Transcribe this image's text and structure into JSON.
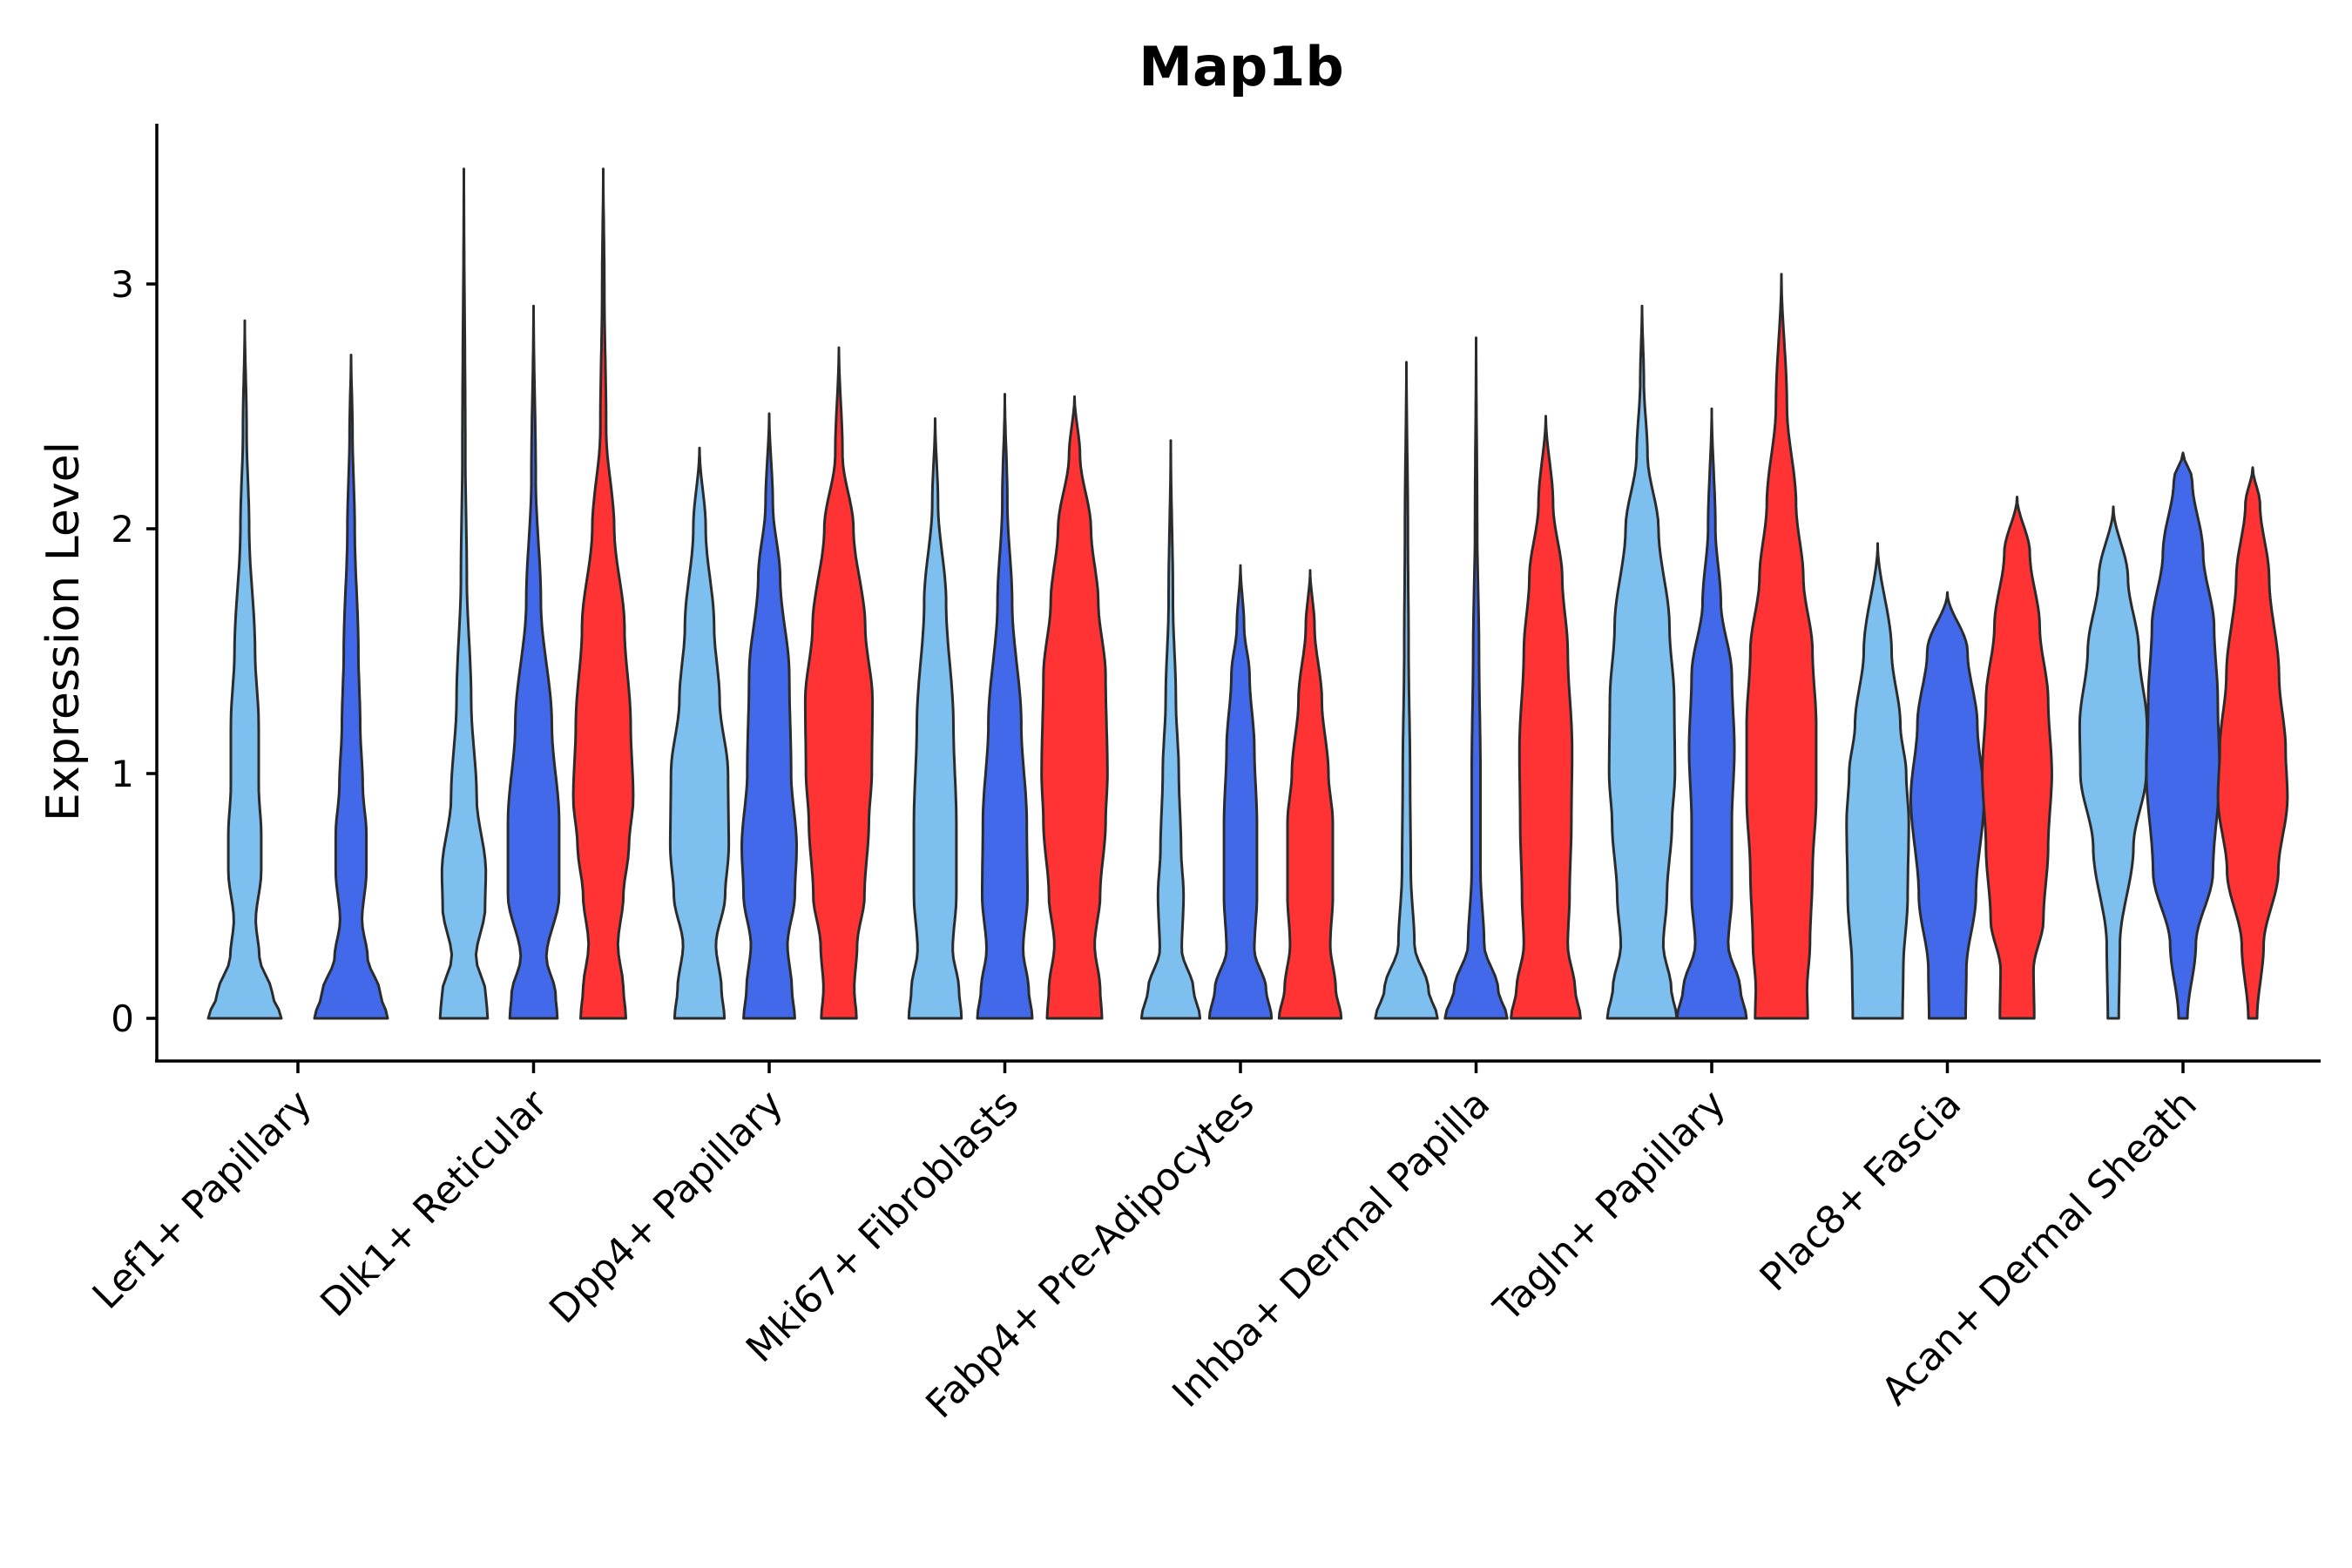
{
  "chart_data": {
    "type": "violin",
    "title": "Map1b",
    "xlabel": "",
    "ylabel": "Expression Level",
    "ylim": [
      -0.17,
      3.65
    ],
    "yticks": [
      0,
      1,
      2,
      3
    ],
    "grid": false,
    "legend": "none",
    "series_colors": [
      "#7dbfee",
      "#4169e9",
      "#ff3333"
    ],
    "categories": [
      "Lef1+ Papillary",
      "Dlk1+ Reticular",
      "Dpp4+ Papillary",
      "Mki67+ Fibroblasts",
      "Fabp4+ Pre-Adipocytes",
      "Inhba+ Dermal Papilla",
      "Tagln+ Papillary",
      "Plac8+ Fascia",
      "Acan+ Dermal Sheath"
    ],
    "violins": [
      {
        "category": 0,
        "series": 0,
        "max": 2.85,
        "min": 0,
        "profile": [
          [
            0,
            1.0
          ],
          [
            0.1,
            0.75
          ],
          [
            0.25,
            0.4
          ],
          [
            0.4,
            0.3
          ],
          [
            0.6,
            0.45
          ],
          [
            0.75,
            0.45
          ],
          [
            0.95,
            0.38
          ],
          [
            1.2,
            0.38
          ],
          [
            1.5,
            0.28
          ],
          [
            2.0,
            0.12
          ],
          [
            2.4,
            0.05
          ],
          [
            2.85,
            0
          ]
        ]
      },
      {
        "category": 0,
        "series": 1,
        "max": 2.71,
        "min": 0,
        "profile": [
          [
            0,
            1.0
          ],
          [
            0.1,
            0.8
          ],
          [
            0.25,
            0.45
          ],
          [
            0.4,
            0.3
          ],
          [
            0.6,
            0.42
          ],
          [
            0.75,
            0.42
          ],
          [
            0.95,
            0.32
          ],
          [
            1.2,
            0.25
          ],
          [
            1.5,
            0.2
          ],
          [
            2.0,
            0.1
          ],
          [
            2.4,
            0.04
          ],
          [
            2.71,
            0
          ]
        ]
      },
      {
        "category": 1,
        "series": 0,
        "max": 3.47,
        "min": 0,
        "profile": [
          [
            0,
            0.65
          ],
          [
            0.1,
            0.6
          ],
          [
            0.25,
            0.33
          ],
          [
            0.45,
            0.58
          ],
          [
            0.6,
            0.6
          ],
          [
            0.9,
            0.35
          ],
          [
            1.3,
            0.2
          ],
          [
            1.8,
            0.08
          ],
          [
            2.3,
            0.04
          ],
          [
            3.47,
            0
          ]
        ]
      },
      {
        "category": 1,
        "series": 1,
        "max": 2.91,
        "min": 0,
        "profile": [
          [
            0,
            0.65
          ],
          [
            0.1,
            0.6
          ],
          [
            0.25,
            0.35
          ],
          [
            0.5,
            0.7
          ],
          [
            0.8,
            0.7
          ],
          [
            1.2,
            0.5
          ],
          [
            1.7,
            0.2
          ],
          [
            2.2,
            0.06
          ],
          [
            2.91,
            0
          ]
        ]
      },
      {
        "category": 1,
        "series": 2,
        "max": 3.47,
        "min": 0,
        "profile": [
          [
            0,
            0.62
          ],
          [
            0.12,
            0.55
          ],
          [
            0.3,
            0.4
          ],
          [
            0.5,
            0.55
          ],
          [
            0.7,
            0.7
          ],
          [
            0.9,
            0.82
          ],
          [
            1.2,
            0.75
          ],
          [
            1.6,
            0.58
          ],
          [
            2.0,
            0.3
          ],
          [
            2.4,
            0.08
          ],
          [
            3.0,
            0.03
          ],
          [
            3.47,
            0
          ]
        ]
      },
      {
        "category": 2,
        "series": 0,
        "max": 2.33,
        "min": 0,
        "profile": [
          [
            0,
            0.68
          ],
          [
            0.12,
            0.6
          ],
          [
            0.3,
            0.45
          ],
          [
            0.5,
            0.7
          ],
          [
            0.7,
            0.8
          ],
          [
            1.0,
            0.78
          ],
          [
            1.3,
            0.55
          ],
          [
            1.6,
            0.4
          ],
          [
            2.0,
            0.17
          ],
          [
            2.33,
            0
          ]
        ]
      },
      {
        "category": 2,
        "series": 1,
        "max": 2.47,
        "min": 0,
        "profile": [
          [
            0,
            0.7
          ],
          [
            0.12,
            0.62
          ],
          [
            0.3,
            0.5
          ],
          [
            0.5,
            0.7
          ],
          [
            0.7,
            0.75
          ],
          [
            1.0,
            0.6
          ],
          [
            1.4,
            0.55
          ],
          [
            1.8,
            0.3
          ],
          [
            2.1,
            0.1
          ],
          [
            2.47,
            0
          ]
        ]
      },
      {
        "category": 2,
        "series": 2,
        "max": 2.74,
        "min": 0,
        "profile": [
          [
            0,
            0.48
          ],
          [
            0.12,
            0.42
          ],
          [
            0.3,
            0.5
          ],
          [
            0.5,
            0.7
          ],
          [
            0.8,
            0.82
          ],
          [
            1.0,
            0.9
          ],
          [
            1.3,
            0.92
          ],
          [
            1.6,
            0.72
          ],
          [
            2.0,
            0.4
          ],
          [
            2.3,
            0.1
          ],
          [
            2.74,
            0
          ]
        ]
      },
      {
        "category": 3,
        "series": 0,
        "max": 2.45,
        "min": 0,
        "profile": [
          [
            0,
            0.72
          ],
          [
            0.12,
            0.65
          ],
          [
            0.28,
            0.48
          ],
          [
            0.5,
            0.58
          ],
          [
            0.8,
            0.58
          ],
          [
            1.2,
            0.5
          ],
          [
            1.7,
            0.3
          ],
          [
            2.1,
            0.08
          ],
          [
            2.45,
            0
          ]
        ]
      },
      {
        "category": 3,
        "series": 1,
        "max": 2.55,
        "min": 0,
        "profile": [
          [
            0,
            0.75
          ],
          [
            0.12,
            0.65
          ],
          [
            0.28,
            0.5
          ],
          [
            0.5,
            0.62
          ],
          [
            0.8,
            0.6
          ],
          [
            1.2,
            0.45
          ],
          [
            1.7,
            0.2
          ],
          [
            2.1,
            0.07
          ],
          [
            2.55,
            0
          ]
        ]
      },
      {
        "category": 3,
        "series": 2,
        "max": 2.54,
        "min": 0,
        "profile": [
          [
            0,
            0.75
          ],
          [
            0.12,
            0.7
          ],
          [
            0.3,
            0.55
          ],
          [
            0.5,
            0.7
          ],
          [
            0.8,
            0.85
          ],
          [
            1.0,
            0.9
          ],
          [
            1.4,
            0.85
          ],
          [
            1.7,
            0.65
          ],
          [
            2.0,
            0.45
          ],
          [
            2.3,
            0.15
          ],
          [
            2.54,
            0
          ]
        ]
      },
      {
        "category": 4,
        "series": 0,
        "max": 2.36,
        "min": 0,
        "profile": [
          [
            0,
            0.8
          ],
          [
            0.12,
            0.62
          ],
          [
            0.28,
            0.3
          ],
          [
            0.5,
            0.35
          ],
          [
            0.7,
            0.28
          ],
          [
            1.0,
            0.22
          ],
          [
            1.3,
            0.14
          ],
          [
            1.7,
            0.06
          ],
          [
            2.36,
            0
          ]
        ]
      },
      {
        "category": 4,
        "series": 1,
        "max": 1.85,
        "min": 0,
        "profile": [
          [
            0,
            0.85
          ],
          [
            0.12,
            0.7
          ],
          [
            0.28,
            0.38
          ],
          [
            0.5,
            0.45
          ],
          [
            0.8,
            0.45
          ],
          [
            1.1,
            0.38
          ],
          [
            1.4,
            0.25
          ],
          [
            1.6,
            0.1
          ],
          [
            1.85,
            0
          ]
        ]
      },
      {
        "category": 4,
        "series": 2,
        "max": 1.83,
        "min": 0,
        "profile": [
          [
            0,
            0.85
          ],
          [
            0.12,
            0.7
          ],
          [
            0.3,
            0.55
          ],
          [
            0.5,
            0.62
          ],
          [
            0.8,
            0.62
          ],
          [
            1.0,
            0.5
          ],
          [
            1.3,
            0.32
          ],
          [
            1.6,
            0.12
          ],
          [
            1.83,
            0
          ]
        ]
      },
      {
        "category": 5,
        "series": 0,
        "max": 2.68,
        "min": 0,
        "profile": [
          [
            0,
            0.85
          ],
          [
            0.12,
            0.6
          ],
          [
            0.3,
            0.22
          ],
          [
            0.6,
            0.12
          ],
          [
            1.0,
            0.1
          ],
          [
            1.5,
            0.06
          ],
          [
            2.0,
            0.04
          ],
          [
            2.68,
            0
          ]
        ]
      },
      {
        "category": 5,
        "series": 1,
        "max": 2.78,
        "min": 0,
        "profile": [
          [
            0,
            0.85
          ],
          [
            0.12,
            0.6
          ],
          [
            0.3,
            0.22
          ],
          [
            0.6,
            0.12
          ],
          [
            1.0,
            0.12
          ],
          [
            1.5,
            0.08
          ],
          [
            2.0,
            0.03
          ],
          [
            2.78,
            0
          ]
        ]
      },
      {
        "category": 5,
        "series": 2,
        "max": 2.46,
        "min": 0,
        "profile": [
          [
            0,
            0.95
          ],
          [
            0.12,
            0.8
          ],
          [
            0.3,
            0.6
          ],
          [
            0.5,
            0.65
          ],
          [
            0.8,
            0.7
          ],
          [
            1.1,
            0.72
          ],
          [
            1.5,
            0.6
          ],
          [
            1.8,
            0.45
          ],
          [
            2.1,
            0.2
          ],
          [
            2.46,
            0
          ]
        ]
      },
      {
        "category": 6,
        "series": 0,
        "max": 2.91,
        "min": 0,
        "profile": [
          [
            0,
            0.95
          ],
          [
            0.12,
            0.8
          ],
          [
            0.3,
            0.58
          ],
          [
            0.5,
            0.68
          ],
          [
            0.8,
            0.82
          ],
          [
            1.0,
            0.9
          ],
          [
            1.3,
            0.88
          ],
          [
            1.6,
            0.75
          ],
          [
            2.0,
            0.45
          ],
          [
            2.3,
            0.15
          ],
          [
            2.6,
            0.05
          ],
          [
            2.91,
            0
          ]
        ]
      },
      {
        "category": 6,
        "series": 1,
        "max": 2.49,
        "min": 0,
        "profile": [
          [
            0,
            0.95
          ],
          [
            0.12,
            0.78
          ],
          [
            0.3,
            0.45
          ],
          [
            0.5,
            0.55
          ],
          [
            0.8,
            0.55
          ],
          [
            1.1,
            0.62
          ],
          [
            1.4,
            0.55
          ],
          [
            1.7,
            0.25
          ],
          [
            2.0,
            0.1
          ],
          [
            2.49,
            0
          ]
        ]
      },
      {
        "category": 6,
        "series": 2,
        "max": 3.04,
        "min": 0,
        "profile": [
          [
            0,
            0.72
          ],
          [
            0.12,
            0.7
          ],
          [
            0.3,
            0.78
          ],
          [
            0.6,
            0.85
          ],
          [
            0.9,
            0.95
          ],
          [
            1.2,
            0.95
          ],
          [
            1.5,
            0.85
          ],
          [
            1.8,
            0.6
          ],
          [
            2.1,
            0.4
          ],
          [
            2.5,
            0.15
          ],
          [
            3.04,
            0
          ]
        ]
      },
      {
        "category": 7,
        "series": 0,
        "max": 1.94,
        "min": 0,
        "profile": [
          [
            0,
            0.68
          ],
          [
            0.2,
            0.7
          ],
          [
            0.5,
            0.82
          ],
          [
            0.8,
            0.85
          ],
          [
            1.0,
            0.78
          ],
          [
            1.2,
            0.62
          ],
          [
            1.5,
            0.38
          ],
          [
            1.94,
            0
          ]
        ]
      },
      {
        "category": 7,
        "series": 1,
        "max": 1.74,
        "min": 0,
        "profile": [
          [
            0,
            0.5
          ],
          [
            0.2,
            0.52
          ],
          [
            0.5,
            0.78
          ],
          [
            0.9,
            1.0
          ],
          [
            1.2,
            0.82
          ],
          [
            1.5,
            0.55
          ],
          [
            1.74,
            0
          ]
        ]
      },
      {
        "category": 7,
        "series": 2,
        "max": 2.13,
        "min": 0,
        "profile": [
          [
            0,
            0.47
          ],
          [
            0.2,
            0.45
          ],
          [
            0.4,
            0.72
          ],
          [
            0.7,
            0.85
          ],
          [
            1.0,
            0.95
          ],
          [
            1.3,
            0.85
          ],
          [
            1.6,
            0.62
          ],
          [
            1.9,
            0.35
          ],
          [
            2.13,
            0
          ]
        ]
      },
      {
        "category": 8,
        "series": 0,
        "max": 2.09,
        "min": 0,
        "profile": [
          [
            0,
            0.15
          ],
          [
            0.3,
            0.18
          ],
          [
            0.7,
            0.55
          ],
          [
            1.0,
            0.9
          ],
          [
            1.2,
            0.92
          ],
          [
            1.5,
            0.7
          ],
          [
            1.8,
            0.4
          ],
          [
            2.09,
            0
          ]
        ]
      },
      {
        "category": 8,
        "series": 1,
        "max": 2.31,
        "min": 0,
        "profile": [
          [
            0,
            0.12
          ],
          [
            0.3,
            0.35
          ],
          [
            0.6,
            0.82
          ],
          [
            1.0,
            1.0
          ],
          [
            1.3,
            0.95
          ],
          [
            1.6,
            0.85
          ],
          [
            1.9,
            0.55
          ],
          [
            2.2,
            0.25
          ],
          [
            2.31,
            0
          ]
        ]
      },
      {
        "category": 8,
        "series": 2,
        "max": 2.25,
        "min": 0,
        "profile": [
          [
            0,
            0.12
          ],
          [
            0.3,
            0.3
          ],
          [
            0.6,
            0.7
          ],
          [
            0.9,
            0.95
          ],
          [
            1.1,
            0.9
          ],
          [
            1.4,
            0.72
          ],
          [
            1.8,
            0.45
          ],
          [
            2.1,
            0.2
          ],
          [
            2.25,
            0
          ]
        ]
      }
    ]
  }
}
